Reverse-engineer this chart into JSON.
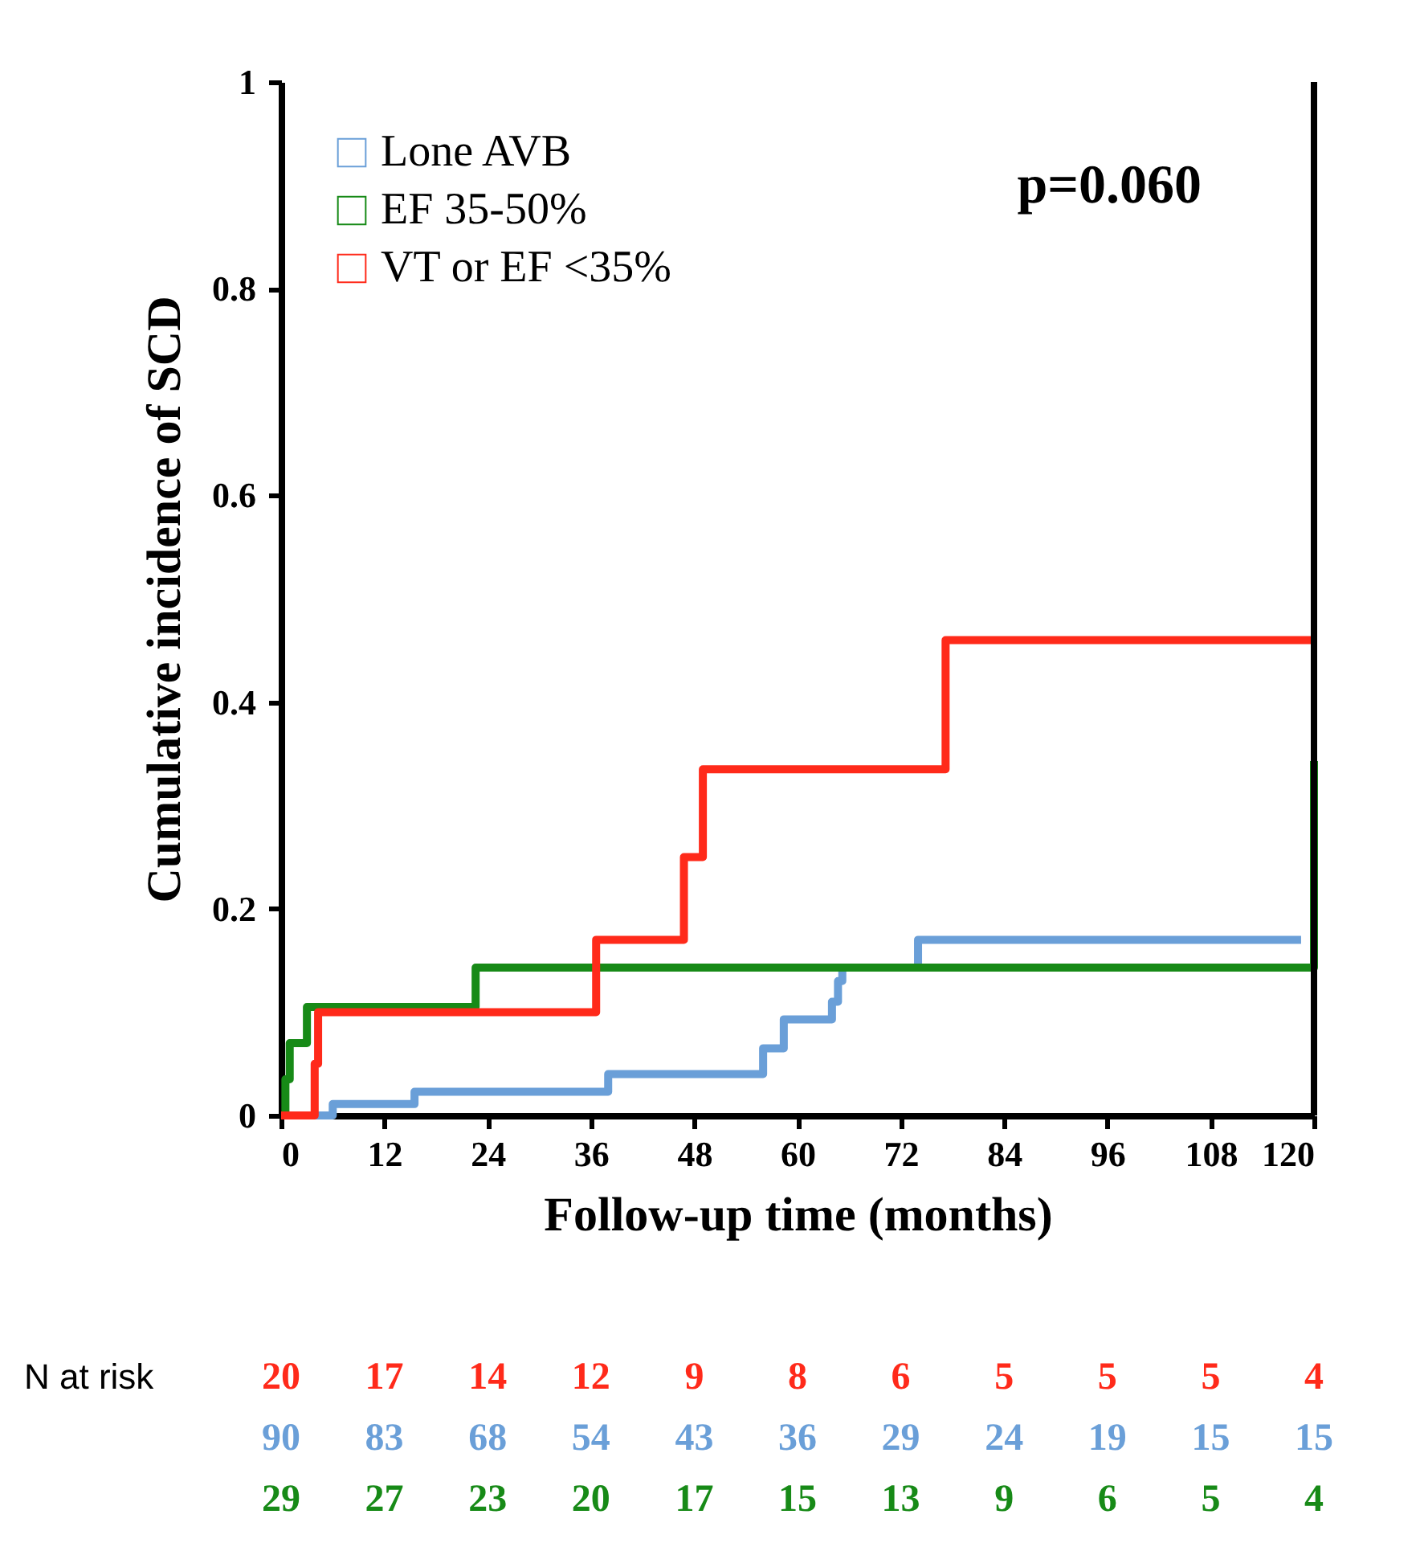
{
  "chart_data": {
    "type": "step",
    "xlabel": "Follow-up time (months)",
    "ylabel": "Cumulative incidence of SCD",
    "series": [
      {
        "name": "Lone AVB",
        "color": "#6a9fd8",
        "x": [
          0,
          6,
          15.5,
          38,
          56,
          58.4,
          64,
          64.7,
          65.2,
          74,
          118.5
        ],
        "values": [
          0,
          0.011,
          0.023,
          0.04,
          0.065,
          0.093,
          0.11,
          0.13,
          0.143,
          0.17,
          0.17
        ]
      },
      {
        "name": "EF 35-50%",
        "color": "#178a17",
        "x": [
          0,
          0.5,
          1,
          3,
          22.6,
          120,
          120
        ],
        "values": [
          0,
          0.035,
          0.07,
          0.105,
          0.143,
          0.143,
          0.343
        ]
      },
      {
        "name": "VT or EF <35%",
        "color": "#ff2a1a",
        "x": [
          0,
          3.9,
          4.3,
          36.6,
          46.8,
          49,
          77.2,
          120
        ],
        "values": [
          0,
          0.05,
          0.1,
          0.17,
          0.25,
          0.335,
          0.46,
          0.46
        ]
      }
    ],
    "xlim": [
      0,
      120
    ],
    "xticks": [
      0,
      12,
      24,
      36,
      48,
      60,
      72,
      84,
      96,
      108,
      120
    ],
    "ylim": [
      0,
      1
    ],
    "yticks": [
      0,
      0.2,
      0.4,
      0.6,
      0.8,
      1
    ],
    "legend": "top left",
    "grid": false,
    "marker": "none",
    "line_style": "solid",
    "annotations": [
      "p=0.060",
      "N at risk",
      "20 17 14 12 9 8 6 5 5 5 4",
      "90 83 68 54 43 36 29 24 19 15 15",
      "29 27 23 20 17 15 13 9 6 5 4"
    ]
  }
}
